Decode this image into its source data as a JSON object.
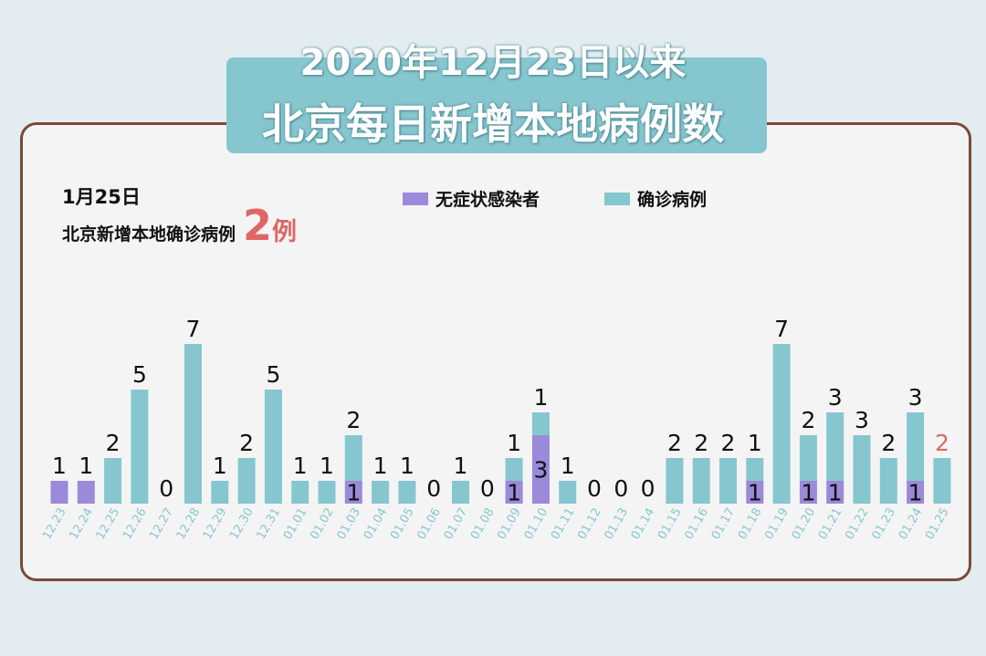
{
  "title": {
    "line1": "2020年12月23日以来",
    "line2": "北京每日新增本地病例数"
  },
  "summary": {
    "date": "1月25日",
    "label": "北京新增本地确诊病例",
    "count": "2",
    "unit": "例"
  },
  "legend": [
    {
      "label": "无症状感染者",
      "color": "#9a8ad9"
    },
    {
      "label": "确诊病例",
      "color": "#86c6cf"
    }
  ],
  "colors": {
    "asymptomatic": "#9a8ad9",
    "confirmed": "#86c6cf",
    "highlight": "#e06666",
    "tick": "#86c6cf"
  },
  "chart_data": {
    "type": "bar",
    "stacked": true,
    "categories": [
      "12.23",
      "12.24",
      "12.25",
      "12.26",
      "12.27",
      "12.28",
      "12.29",
      "12.30",
      "12.31",
      "01.01",
      "01.02",
      "01.03",
      "01.04",
      "01.05",
      "01.06",
      "01.07",
      "01.08",
      "01.09",
      "01.10",
      "01.11",
      "01.12",
      "01.13",
      "01.14",
      "01.15",
      "01.16",
      "01.17",
      "01.18",
      "01.19",
      "01.20",
      "01.21",
      "01.22",
      "01.23",
      "01.24",
      "01.25"
    ],
    "series": [
      {
        "name": "无症状感染者",
        "values": [
          1,
          1,
          0,
          0,
          0,
          0,
          0,
          0,
          0,
          0,
          0,
          1,
          0,
          0,
          0,
          0,
          0,
          1,
          3,
          0,
          0,
          0,
          0,
          0,
          0,
          0,
          1,
          0,
          1,
          1,
          0,
          0,
          1,
          0
        ]
      },
      {
        "name": "确诊病例",
        "values": [
          0,
          0,
          2,
          5,
          0,
          7,
          1,
          2,
          5,
          1,
          1,
          2,
          1,
          1,
          0,
          1,
          0,
          1,
          1,
          1,
          0,
          0,
          0,
          2,
          2,
          2,
          1,
          7,
          2,
          3,
          3,
          2,
          3,
          2
        ]
      }
    ],
    "highlight_category": "01.25",
    "ylim": [
      0,
      7.5
    ],
    "grid": false
  }
}
